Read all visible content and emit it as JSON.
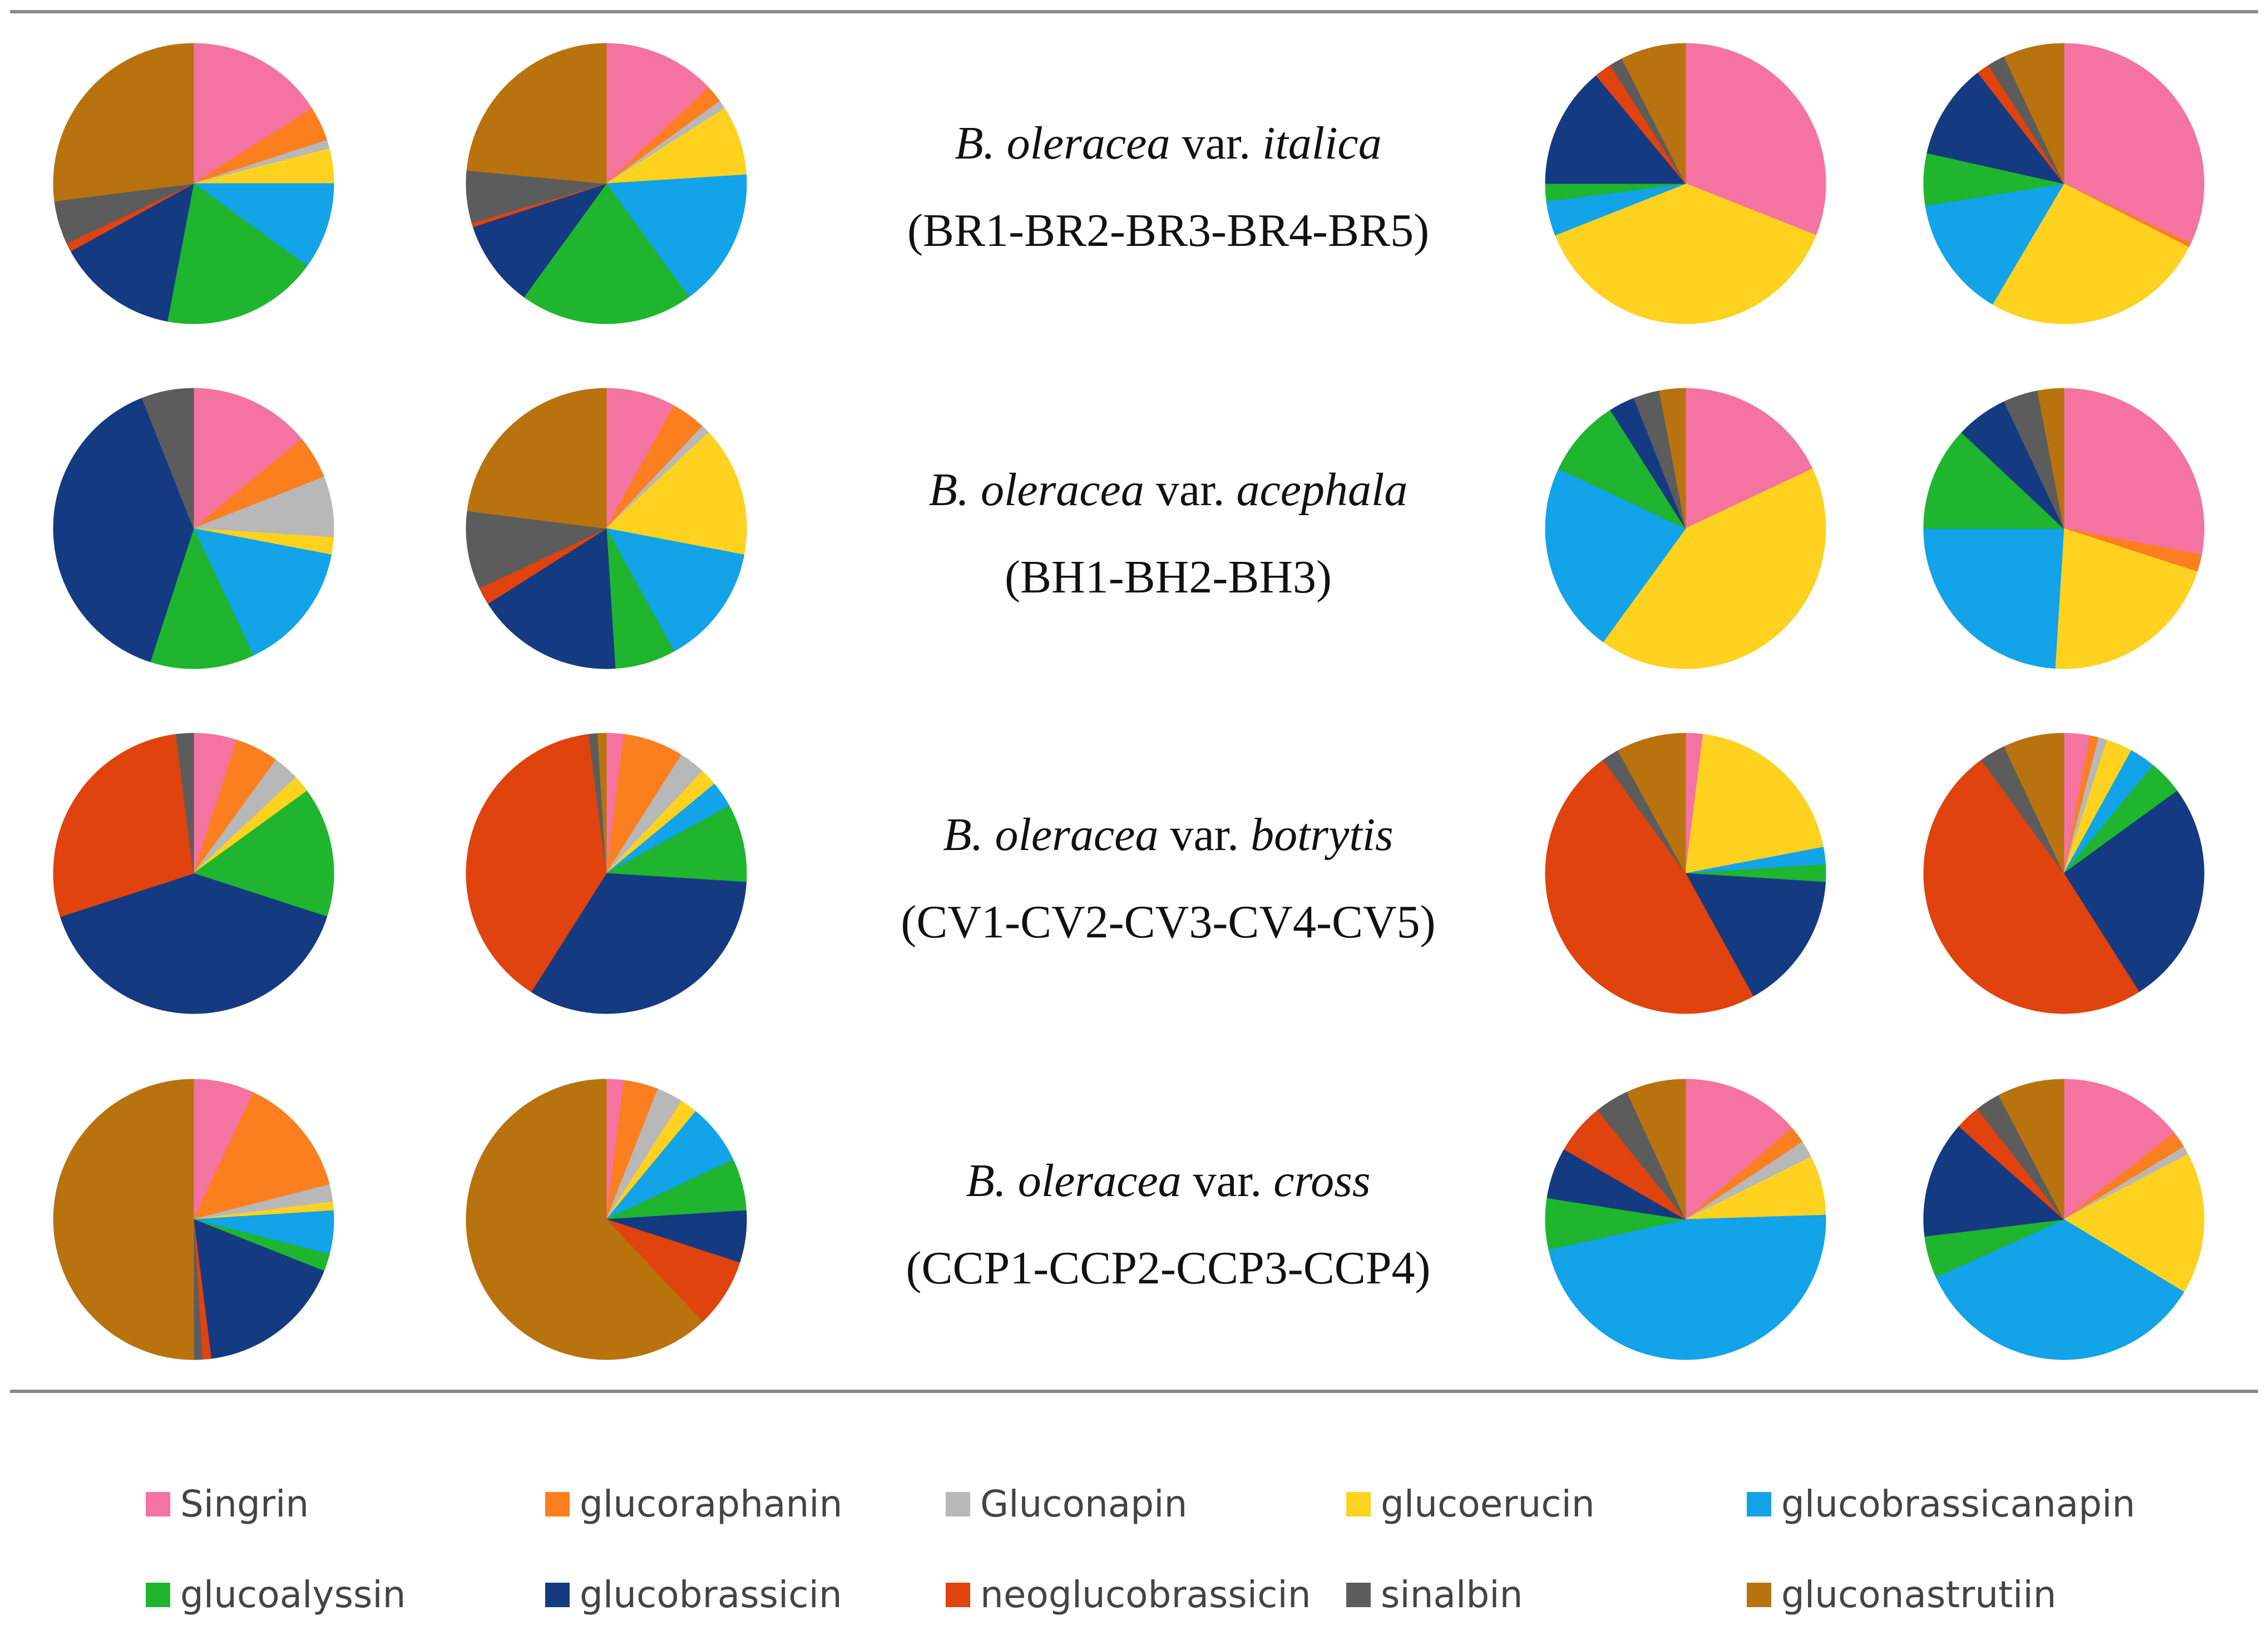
{
  "colors": {
    "Singrin": "#f573a0",
    "glucoraphanin": "#fb7f1f",
    "Gluconapin": "#b8b8b8",
    "glucoerucin": "#ffd21f",
    "glucobrassicanapin": "#12a3e8",
    "glucoalyssin": "#1fb52e",
    "glucobrassicin": "#143a82",
    "neoglucobrassicin": "#e0430d",
    "sinalbin": "#5c5c5c",
    "gluconastrutiin": "#b8730e"
  },
  "chart_data": {
    "type": "pie",
    "title": "",
    "legend_position": "bottom",
    "compounds": [
      "Singrin",
      "glucoraphanin",
      "Gluconapin",
      "glucoerucin",
      "glucobrassicanapin",
      "glucoalyssin",
      "glucobrassicin",
      "neoglucobrassicin",
      "sinalbin",
      "gluconastrutiin"
    ],
    "groups": [
      {
        "label_prefix": "B. oleracea",
        "label_var": "var.",
        "label_name": "italica",
        "samples": "(BR1-BR2-BR3-BR4-BR5)",
        "pies": [
          {
            "values": [
              16,
              4,
              1,
              4,
              10,
              18,
              14,
              1,
              5,
              27
            ]
          },
          {
            "values": [
              13,
              2,
              1,
              8,
              16,
              20,
              10,
              0.5,
              6,
              23.5
            ]
          },
          {
            "values": [
              31,
              0,
              0,
              38,
              4,
              2,
              14,
              2,
              1.5,
              7.5
            ]
          },
          {
            "values": [
              32,
              0.5,
              0,
              26,
              14,
              6,
              11,
              1.5,
              2,
              7
            ]
          }
        ]
      },
      {
        "label_prefix": "B. oleracea",
        "label_var": "var.",
        "label_name": "acephala",
        "samples": "(BH1-BH2-BH3)",
        "pies": [
          {
            "values": [
              14,
              5,
              7,
              2,
              15,
              12,
              39,
              0,
              6,
              0
            ]
          },
          {
            "values": [
              8,
              4,
              1,
              15,
              14,
              7,
              17,
              2,
              9,
              23
            ]
          },
          {
            "values": [
              18,
              0,
              0,
              42,
              22,
              9,
              3,
              0,
              3,
              3
            ]
          },
          {
            "values": [
              28,
              2,
              0,
              21,
              24,
              12,
              6,
              0,
              4,
              3
            ]
          }
        ]
      },
      {
        "label_prefix": "B. oleracea",
        "label_var": "var.",
        "label_name": "botrytis",
        "samples": "(CV1-CV2-CV3-CV4-CV5)",
        "pies": [
          {
            "values": [
              5,
              5,
              3,
              2,
              0,
              15,
              40,
              28,
              2,
              0
            ]
          },
          {
            "values": [
              2,
              7,
              3,
              2,
              3,
              9,
              33,
              39,
              1,
              1
            ]
          },
          {
            "values": [
              2,
              0,
              0,
              20,
              2,
              2,
              16,
              48,
              2,
              8
            ]
          },
          {
            "values": [
              3,
              1,
              1,
              3,
              3,
              4,
              26,
              49,
              3,
              7
            ]
          }
        ]
      },
      {
        "label_prefix": "B. oleracea",
        "label_var": "var.",
        "label_name": "cross",
        "samples": "(CCP1-CCP2-CCP3-CCP4)",
        "pies": [
          {
            "values": [
              7,
              14,
              2,
              1,
              5,
              2,
              17,
              1,
              1,
              50
            ]
          },
          {
            "values": [
              2,
              4,
              3,
              2,
              7,
              6,
              6,
              8,
              0,
              62
            ]
          },
          {
            "values": [
              14,
              2,
              2,
              7,
              48,
              6,
              6,
              6,
              4,
              7
            ]
          },
          {
            "values": [
              15,
              2,
              1,
              17,
              36,
              5,
              14,
              3,
              3,
              8
            ]
          }
        ]
      }
    ]
  }
}
